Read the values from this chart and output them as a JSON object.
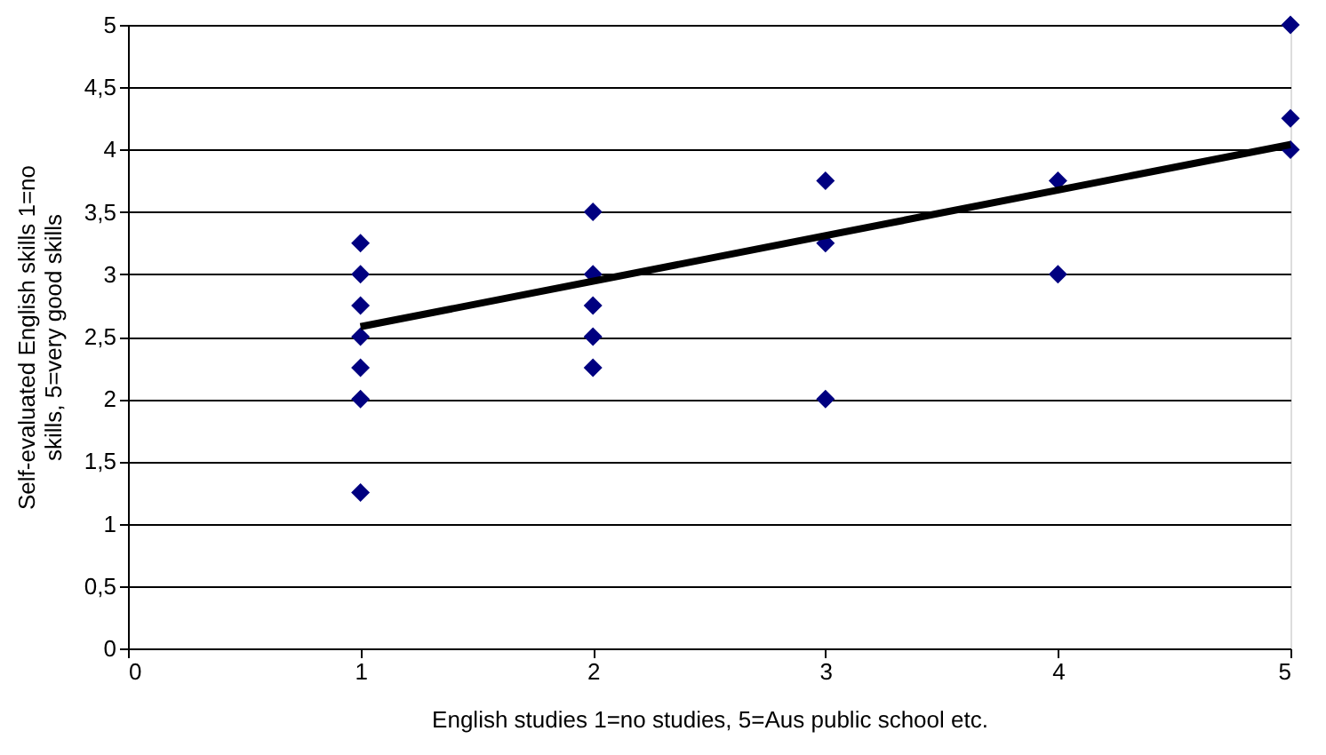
{
  "chart_data": {
    "type": "scatter",
    "xlabel": "English studies 1=no studies, 5=Aus public school etc.",
    "ylabel": "Self-evaluated English skills 1=no skills, 5=very good skills",
    "series": [
      {
        "type": "scatter",
        "color": "#000080",
        "marker": "diamond",
        "x": [
          1,
          1,
          1,
          1,
          1,
          1,
          1,
          2,
          2,
          2,
          2,
          2,
          3,
          3,
          3,
          4,
          4,
          5,
          5,
          5
        ],
        "values": [
          3.25,
          3,
          2.75,
          2.5,
          2.25,
          2,
          1.25,
          3.5,
          3,
          2.75,
          2.5,
          2.25,
          3.75,
          3.25,
          2,
          3.75,
          3,
          5,
          4.25,
          4
        ]
      },
      {
        "type": "line",
        "color": "#000000",
        "line_style": "solid",
        "x": [
          1,
          5
        ],
        "values": [
          2.58,
          4.04
        ]
      }
    ],
    "xlim": [
      0,
      5
    ],
    "xticks": [
      0,
      1,
      2,
      3,
      4,
      5
    ],
    "ylim": [
      0,
      5
    ],
    "yticks": [
      0,
      {
        "value": 0.5,
        "label": "0,5"
      },
      1,
      {
        "value": 1.5,
        "label": "1,5"
      },
      2,
      {
        "value": 2.5,
        "label": "2,5"
      },
      3,
      {
        "value": 3.5,
        "label": "3,5"
      },
      4,
      {
        "value": 4.5,
        "label": "4,5"
      },
      5
    ],
    "grid": "y"
  }
}
